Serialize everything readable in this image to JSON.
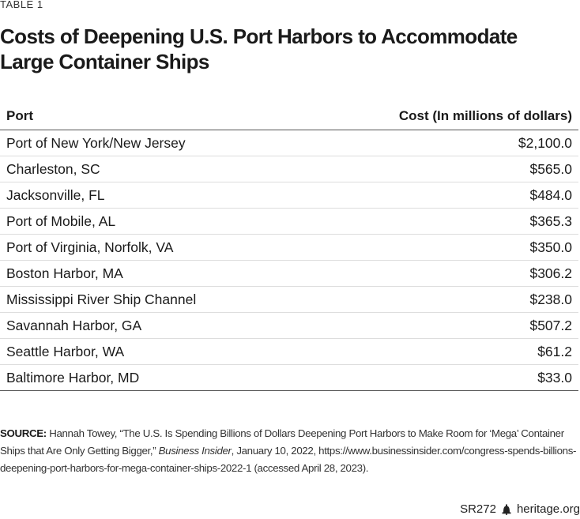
{
  "header": {
    "table_label": "TABLE 1",
    "title_line1": "Costs of Deepening U.S. Port Harbors to Accommodate",
    "title_line2": "Large Container Ships"
  },
  "table": {
    "columns": [
      "Port",
      "Cost (In millions of dollars)"
    ],
    "rows": [
      {
        "port": "Port of New York/New Jersey",
        "cost": "$2,100.0"
      },
      {
        "port": "Charleston, SC",
        "cost": "$565.0"
      },
      {
        "port": "Jacksonville, FL",
        "cost": "$484.0"
      },
      {
        "port": "Port of Mobile, AL",
        "cost": "$365.3"
      },
      {
        "port": "Port of Virginia, Norfolk, VA",
        "cost": "$350.0"
      },
      {
        "port": "Boston Harbor, MA",
        "cost": "$306.2"
      },
      {
        "port": "Mississippi River Ship Channel",
        "cost": "$238.0"
      },
      {
        "port": "Savannah Harbor, GA",
        "cost": "$507.2"
      },
      {
        "port": "Seattle Harbor, WA",
        "cost": "$61.2"
      },
      {
        "port": "Baltimore Harbor, MD",
        "cost": "$33.0"
      }
    ]
  },
  "source": {
    "label": "SOURCE:",
    "text_before": " Hannah Towey, “The U.S. Is Spending Billions of Dollars Deepening Port Harbors to Make Room for ‘Mega’ Container Ships that Are Only Getting Bigger,” ",
    "publication": "Business Insider",
    "text_after": ", January 10, 2022, https://www.businessinsider.com/congress-spends-billions-deepening-port-harbors-for-mega-container-ships-2022-1 (accessed April 28, 2023)."
  },
  "footer": {
    "report_id": "SR272",
    "icon": "liberty-bell-icon",
    "site": "heritage.org"
  }
}
